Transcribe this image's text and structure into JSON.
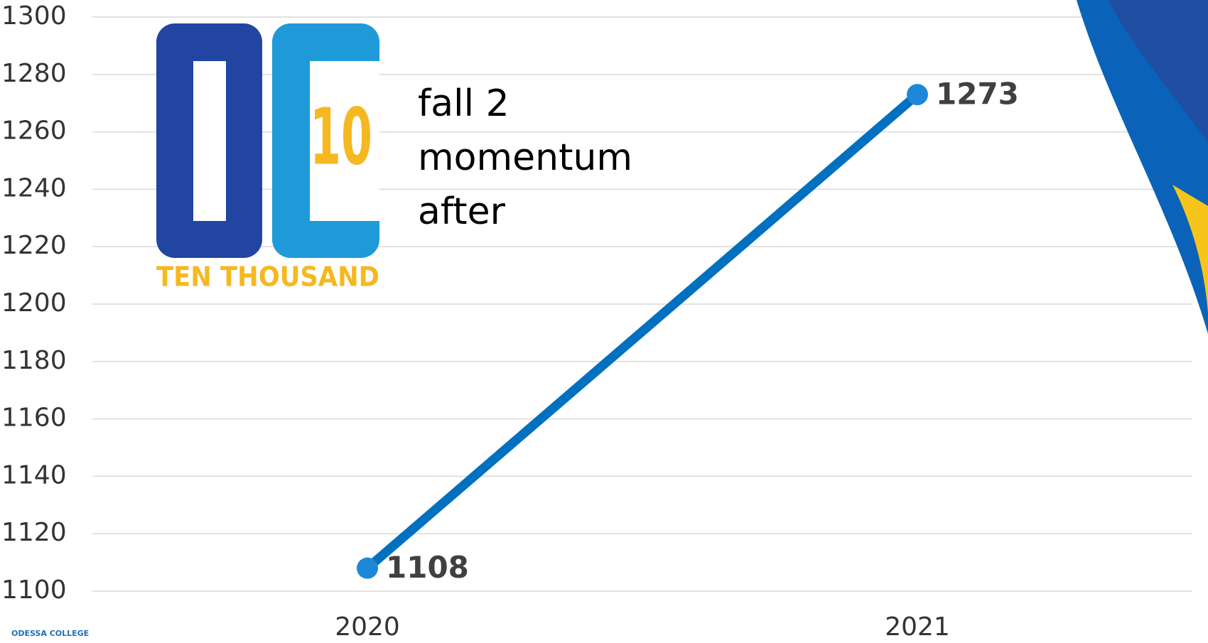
{
  "chart_data": {
    "type": "line",
    "categories": [
      "2020",
      "2021"
    ],
    "values": [
      1108,
      1273
    ],
    "color": "#0070c0",
    "ylim": [
      1100,
      1300
    ],
    "yticks": [
      1100,
      1120,
      1140,
      1160,
      1180,
      1200,
      1220,
      1240,
      1260,
      1280,
      1300
    ],
    "grid": true,
    "annotations": [
      "fall 2",
      "momentum",
      "after"
    ],
    "logo": {
      "number": "10",
      "caption": "TEN THOUSAND",
      "footer": "ODESSA COLLEGE"
    }
  }
}
